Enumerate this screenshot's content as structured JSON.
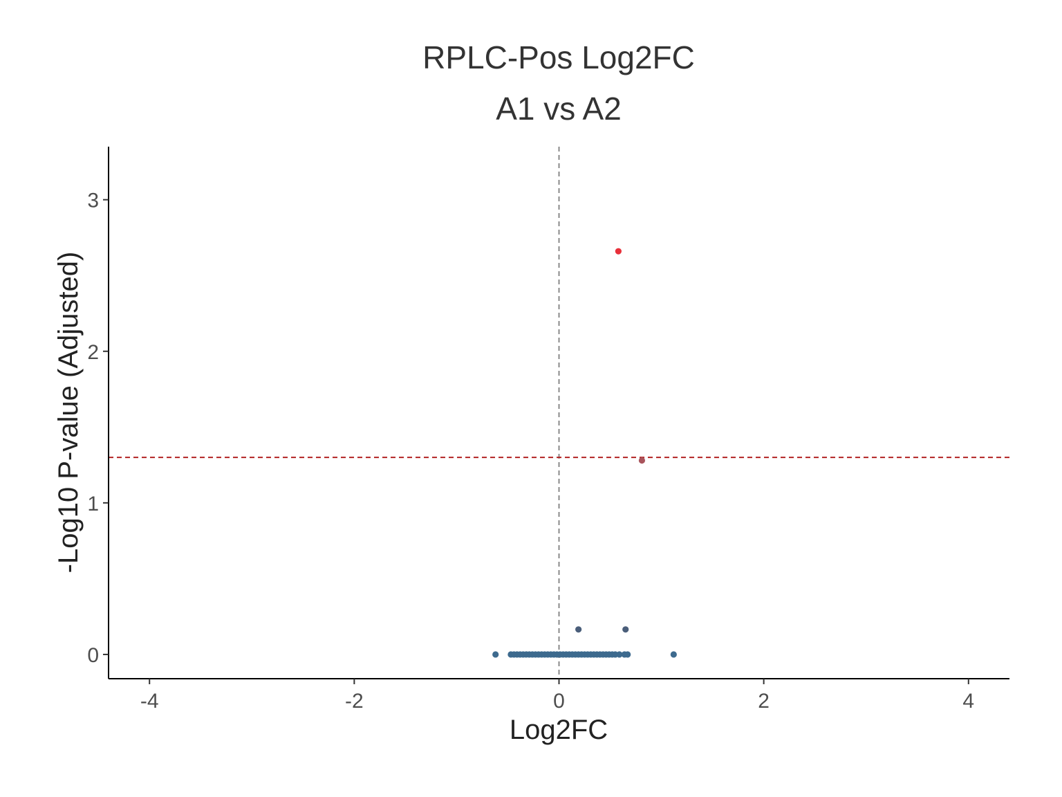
{
  "chart_data": {
    "type": "scatter",
    "title": "RPLC-Pos Log2FC",
    "subtitle": "A1 vs A2",
    "xlabel": "Log2FC",
    "ylabel": "-Log10 P-value (Adjusted)",
    "xlim": [
      -4.4,
      4.4
    ],
    "ylim": [
      -0.16,
      3.35
    ],
    "x_ticks": [
      -4,
      -2,
      0,
      2,
      4
    ],
    "x_tick_labels": [
      "-4",
      "-2",
      "0",
      "2",
      "4"
    ],
    "y_ticks": [
      0,
      1,
      2,
      3
    ],
    "y_tick_labels": [
      "0",
      "1",
      "2",
      "3"
    ],
    "grid": false,
    "legend": "none",
    "reference_lines": [
      {
        "orientation": "vertical",
        "value": 0,
        "style": "dashed",
        "color": "#888888"
      },
      {
        "orientation": "horizontal",
        "value": 1.3,
        "style": "dashed",
        "color": "#b22222"
      }
    ],
    "colors": {
      "significant": "#e8303a",
      "near_threshold": "#a9545c",
      "raised": "#4a5e7a",
      "baseline": "#3d6a8e",
      "axis": "#000000",
      "title": "#333333"
    },
    "points": [
      {
        "x": 0.58,
        "y": 2.66,
        "group": "significant"
      },
      {
        "x": 0.81,
        "y": 1.28,
        "group": "near_threshold"
      },
      {
        "x": 0.19,
        "y": 0.165,
        "group": "raised"
      },
      {
        "x": 0.65,
        "y": 0.165,
        "group": "raised"
      },
      {
        "x": -0.62,
        "y": 0,
        "group": "baseline"
      },
      {
        "x": -0.47,
        "y": 0,
        "group": "baseline"
      },
      {
        "x": -0.44,
        "y": 0,
        "group": "baseline"
      },
      {
        "x": -0.41,
        "y": 0,
        "group": "baseline"
      },
      {
        "x": -0.38,
        "y": 0,
        "group": "baseline"
      },
      {
        "x": -0.35,
        "y": 0,
        "group": "baseline"
      },
      {
        "x": -0.32,
        "y": 0,
        "group": "baseline"
      },
      {
        "x": -0.29,
        "y": 0,
        "group": "baseline"
      },
      {
        "x": -0.26,
        "y": 0,
        "group": "baseline"
      },
      {
        "x": -0.23,
        "y": 0,
        "group": "baseline"
      },
      {
        "x": -0.2,
        "y": 0,
        "group": "baseline"
      },
      {
        "x": -0.17,
        "y": 0,
        "group": "baseline"
      },
      {
        "x": -0.14,
        "y": 0,
        "group": "baseline"
      },
      {
        "x": -0.11,
        "y": 0,
        "group": "baseline"
      },
      {
        "x": -0.08,
        "y": 0,
        "group": "baseline"
      },
      {
        "x": -0.05,
        "y": 0,
        "group": "baseline"
      },
      {
        "x": -0.02,
        "y": 0,
        "group": "baseline"
      },
      {
        "x": 0.01,
        "y": 0,
        "group": "baseline"
      },
      {
        "x": 0.04,
        "y": 0,
        "group": "baseline"
      },
      {
        "x": 0.07,
        "y": 0,
        "group": "baseline"
      },
      {
        "x": 0.1,
        "y": 0,
        "group": "baseline"
      },
      {
        "x": 0.13,
        "y": 0,
        "group": "baseline"
      },
      {
        "x": 0.16,
        "y": 0,
        "group": "baseline"
      },
      {
        "x": 0.19,
        "y": 0,
        "group": "baseline"
      },
      {
        "x": 0.22,
        "y": 0,
        "group": "baseline"
      },
      {
        "x": 0.25,
        "y": 0,
        "group": "baseline"
      },
      {
        "x": 0.28,
        "y": 0,
        "group": "baseline"
      },
      {
        "x": 0.31,
        "y": 0,
        "group": "baseline"
      },
      {
        "x": 0.34,
        "y": 0,
        "group": "baseline"
      },
      {
        "x": 0.37,
        "y": 0,
        "group": "baseline"
      },
      {
        "x": 0.4,
        "y": 0,
        "group": "baseline"
      },
      {
        "x": 0.43,
        "y": 0,
        "group": "baseline"
      },
      {
        "x": 0.46,
        "y": 0,
        "group": "baseline"
      },
      {
        "x": 0.49,
        "y": 0,
        "group": "baseline"
      },
      {
        "x": 0.52,
        "y": 0,
        "group": "baseline"
      },
      {
        "x": 0.55,
        "y": 0,
        "group": "baseline"
      },
      {
        "x": 0.59,
        "y": 0,
        "group": "baseline"
      },
      {
        "x": 0.64,
        "y": 0,
        "group": "baseline"
      },
      {
        "x": 0.67,
        "y": 0,
        "group": "baseline"
      },
      {
        "x": 1.12,
        "y": 0,
        "group": "baseline"
      }
    ]
  }
}
